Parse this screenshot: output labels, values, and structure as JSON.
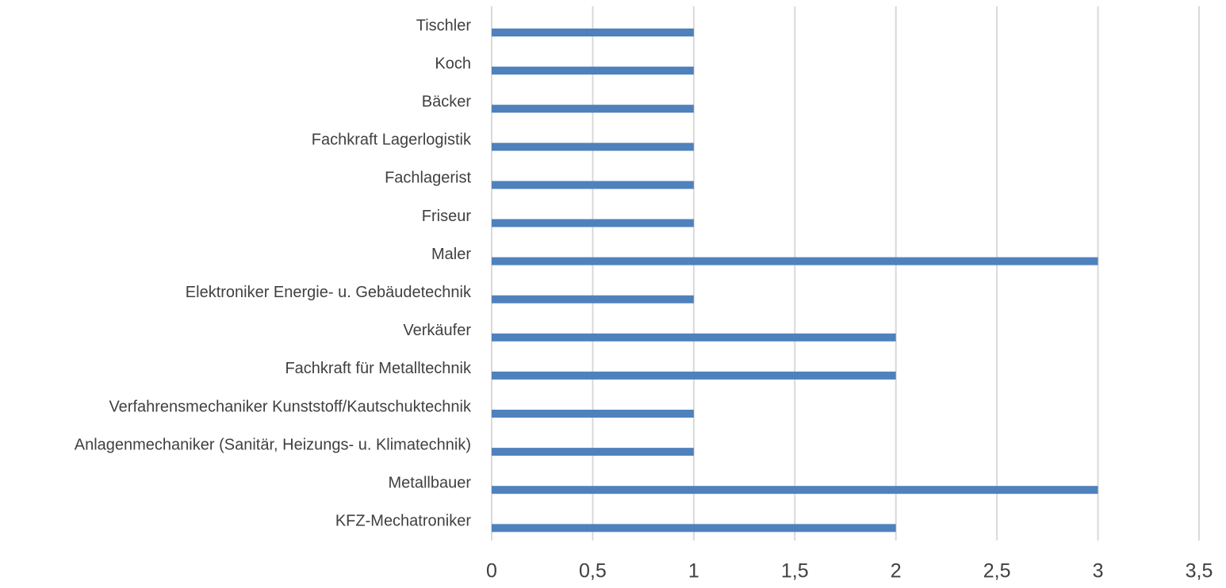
{
  "chart_data": {
    "type": "bar",
    "orientation": "horizontal",
    "categories": [
      "Tischler",
      "Koch",
      "Bäcker",
      "Fachkraft Lagerlogistik",
      "Fachlagerist",
      "Friseur",
      "Maler",
      "Elektroniker Energie- u. Gebäudetechnik",
      "Verkäufer",
      "Fachkraft für Metalltechnik",
      "Verfahrensmechaniker Kunststoff/Kautschuktechnik",
      "Anlagenmechaniker (Sanitär, Heizungs- u. Klimatechnik)",
      "Metallbauer",
      "KFZ-Mechatroniker"
    ],
    "values": [
      1,
      1,
      1,
      1,
      1,
      1,
      3,
      1,
      2,
      2,
      1,
      1,
      3,
      2
    ],
    "color": "#4f81bd",
    "xlim": [
      0,
      3.5
    ],
    "xticks": [
      0,
      {
        "value": 0.5,
        "label": "0,5"
      },
      1,
      {
        "value": 1.5,
        "label": "1,5"
      },
      2,
      {
        "value": 2.5,
        "label": "2,5"
      },
      3,
      {
        "value": 3.5,
        "label": "3,5"
      }
    ],
    "grid": true
  }
}
